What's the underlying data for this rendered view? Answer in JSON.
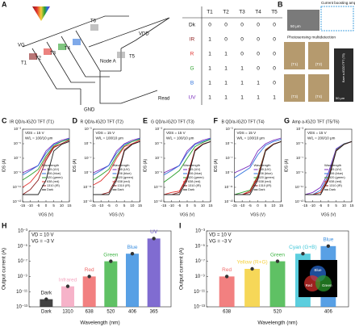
{
  "panel_a": {
    "letter": "A",
    "labels": [
      "VG",
      "VDD",
      "T1",
      "T2",
      "T3",
      "T4",
      "T5",
      "T6",
      "Node A",
      "Read",
      "GND"
    ]
  },
  "table": {
    "header": [
      "T1",
      "T2",
      "T3",
      "T4",
      "T5"
    ],
    "rows": [
      [
        "Dk",
        "0",
        "0",
        "0",
        "0",
        "0"
      ],
      [
        "IR",
        "1",
        "0",
        "0",
        "0",
        "0"
      ],
      [
        "R",
        "1",
        "1",
        "0",
        "0",
        "0"
      ],
      [
        "G",
        "1",
        "1",
        "1",
        "0",
        "0"
      ],
      [
        "B",
        "1",
        "1",
        "1",
        "1",
        "0"
      ],
      [
        "UV",
        "1",
        "1",
        "1",
        "1",
        "1"
      ]
    ],
    "row_colors": [
      "#111111",
      "#8b1a1a",
      "#e0302c",
      "#2ca02c",
      "#2a6fdb",
      "#7b2fbe"
    ]
  },
  "panel_b": {
    "letter": "B",
    "scale": "50 μm",
    "amp": "Current boosting amp",
    "multi": "Photosensing multidetection",
    "photos": [
      "(T1)",
      "(T2)",
      "(T3)",
      "(T4)"
    ],
    "bare": "Bare a-IGZO TFT (T5)",
    "scale2": "50 μm"
  },
  "chart_data": [
    {
      "type": "line",
      "panel": "C",
      "title": "IR QD/a-IGZO TFT (T1)",
      "annotations": [
        "VDS = 15 V",
        "W/L = 100/10 μm"
      ],
      "xlabel": "VGS (V)",
      "ylabel": "IDS (A)",
      "log_y": true,
      "legend_title": "Wavelength",
      "x": [
        -15,
        -10,
        -5,
        0,
        5,
        10,
        15
      ],
      "xlim": [
        -15,
        15
      ],
      "xticks": [
        -15,
        -10,
        -5,
        0,
        5,
        10,
        15
      ],
      "ylim": [
        1e-13,
        0.001
      ],
      "yticks": [
        {
          "value": 0.001,
          "label": "10⁻³"
        },
        {
          "value": 1e-05,
          "label": "10⁻⁵"
        },
        {
          "value": 1e-07,
          "label": "10⁻⁷"
        },
        {
          "value": 1e-09,
          "label": "10⁻⁹"
        },
        {
          "value": 1e-11,
          "label": "10⁻¹¹"
        },
        {
          "value": 1e-13,
          "label": "10⁻¹³"
        }
      ],
      "series": [
        {
          "name": "365 (UV)",
          "color": "#7b2fbe",
          "values": [
            1e-09,
            3e-09,
            1e-08,
            1e-06,
            1e-05,
            3e-05,
            6e-05
          ]
        },
        {
          "name": "406 (blue)",
          "color": "#2a6fdb",
          "values": [
            5e-10,
            2e-09,
            1e-08,
            5e-07,
            8e-06,
            2e-05,
            5e-05
          ]
        },
        {
          "name": "520 (green)",
          "color": "#2ca02c",
          "values": [
            1e-10,
            5e-10,
            3e-09,
            2e-07,
            5e-06,
            2e-05,
            4e-05
          ]
        },
        {
          "name": "638 (red)",
          "color": "#e0302c",
          "values": [
            1e-11,
            5e-11,
            1e-09,
            1e-07,
            4e-06,
            1e-05,
            3e-05
          ]
        },
        {
          "name": "1310 (IR)",
          "color": "#8b1a1a",
          "values": [
            1e-12,
            5e-12,
            1e-10,
            5e-08,
            3e-06,
            1e-05,
            3e-05
          ]
        },
        {
          "name": "Dark",
          "color": "#222222",
          "values": [
            1e-12,
            1e-12,
            1e-12,
            1e-10,
            1e-06,
            8e-06,
            2e-05
          ]
        }
      ]
    },
    {
      "type": "line",
      "panel": "D",
      "title": "R QD/a-IGZO TFT (T2)",
      "annotations": [
        "VDS = 15 V",
        "W/L = 100/10 μm"
      ],
      "xlabel": "VGS (V)",
      "ylabel": "IDS (A)",
      "log_y": true,
      "legend_title": "Wavelength",
      "x": [
        -15,
        -10,
        -5,
        0,
        5,
        10,
        15
      ],
      "xlim": [
        -15,
        15
      ],
      "xticks": [
        -15,
        -10,
        -5,
        0,
        5,
        10,
        15
      ],
      "ylim": [
        1e-13,
        0.001
      ],
      "yticks": [
        {
          "value": 0.001,
          "label": "10⁻³"
        },
        {
          "value": 1e-05,
          "label": "10⁻⁵"
        },
        {
          "value": 1e-07,
          "label": "10⁻⁷"
        },
        {
          "value": 1e-09,
          "label": "10⁻⁹"
        },
        {
          "value": 1e-11,
          "label": "10⁻¹¹"
        },
        {
          "value": 1e-13,
          "label": "10⁻¹³"
        }
      ],
      "series": [
        {
          "name": "365 (UV)",
          "color": "#7b2fbe",
          "values": [
            1e-09,
            3e-09,
            1e-08,
            1e-06,
            1e-05,
            3e-05,
            6e-05
          ]
        },
        {
          "name": "406 (blue)",
          "color": "#2a6fdb",
          "values": [
            5e-10,
            2e-09,
            1e-08,
            5e-07,
            8e-06,
            2e-05,
            5e-05
          ]
        },
        {
          "name": "520 (green)",
          "color": "#2ca02c",
          "values": [
            1e-10,
            5e-10,
            3e-09,
            2e-07,
            5e-06,
            2e-05,
            4e-05
          ]
        },
        {
          "name": "638 (red)",
          "color": "#e0302c",
          "values": [
            2e-11,
            8e-11,
            1e-09,
            1e-07,
            4e-06,
            1e-05,
            3e-05
          ]
        },
        {
          "name": "1310 (IR)",
          "color": "#8b1a1a",
          "values": [
            1e-12,
            1e-12,
            2e-12,
            2e-10,
            1.5e-06,
            9e-06,
            2e-05
          ]
        },
        {
          "name": "Dark",
          "color": "#222222",
          "values": [
            1e-12,
            1e-12,
            1e-12,
            1e-10,
            1e-06,
            8e-06,
            2e-05
          ]
        }
      ]
    },
    {
      "type": "line",
      "panel": "E",
      "title": "G QD/a-IGZO TFT (T3)",
      "annotations": [
        "VDS = 15 V",
        "W/L = 100/10 μm"
      ],
      "xlabel": "VGS (V)",
      "ylabel": "IDS (A)",
      "log_y": true,
      "legend_title": "Wavelength",
      "x": [
        -15,
        -10,
        -5,
        0,
        5,
        10,
        15
      ],
      "xlim": [
        -15,
        15
      ],
      "xticks": [
        -15,
        -10,
        -5,
        0,
        5,
        10,
        15
      ],
      "ylim": [
        1e-13,
        0.001
      ],
      "yticks": [
        {
          "value": 0.001,
          "label": "10⁻³"
        },
        {
          "value": 1e-05,
          "label": "10⁻⁵"
        },
        {
          "value": 1e-07,
          "label": "10⁻⁷"
        },
        {
          "value": 1e-09,
          "label": "10⁻⁹"
        },
        {
          "value": 1e-11,
          "label": "10⁻¹¹"
        },
        {
          "value": 1e-13,
          "label": "10⁻¹³"
        }
      ],
      "series": [
        {
          "name": "365 (UV)",
          "color": "#7b2fbe",
          "values": [
            1e-09,
            3e-09,
            1e-08,
            1e-06,
            1e-05,
            3e-05,
            6e-05
          ]
        },
        {
          "name": "406 (blue)",
          "color": "#2a6fdb",
          "values": [
            5e-10,
            2e-09,
            1e-08,
            5e-07,
            8e-06,
            2e-05,
            5e-05
          ]
        },
        {
          "name": "520 (green)",
          "color": "#2ca02c",
          "values": [
            5e-11,
            3e-10,
            2e-09,
            1e-07,
            4e-06,
            1.5e-05,
            4e-05
          ]
        },
        {
          "name": "638 (red)",
          "color": "#e0302c",
          "values": [
            1e-12,
            2e-12,
            3e-12,
            3e-10,
            1.5e-06,
            9e-06,
            2e-05
          ]
        },
        {
          "name": "1310 (IR)",
          "color": "#8b1a1a",
          "values": [
            1e-12,
            1e-12,
            2e-12,
            2e-10,
            1.2e-06,
            8e-06,
            2e-05
          ]
        },
        {
          "name": "Dark",
          "color": "#222222",
          "values": [
            1e-12,
            1e-12,
            1e-12,
            1e-10,
            1e-06,
            8e-06,
            2e-05
          ]
        }
      ]
    },
    {
      "type": "line",
      "panel": "F",
      "title": "B QD/a-IGZO TFT (T4)",
      "annotations": [
        "VDS = 15 V",
        "W/L = 100/10 μm"
      ],
      "xlabel": "VGS (V)",
      "ylabel": "IDS (A)",
      "log_y": true,
      "legend_title": "Wavelength",
      "x": [
        -15,
        -10,
        -5,
        0,
        5,
        10,
        15
      ],
      "xlim": [
        -15,
        15
      ],
      "xticks": [
        -15,
        -10,
        -5,
        0,
        5,
        10,
        15
      ],
      "ylim": [
        1e-13,
        0.001
      ],
      "yticks": [
        {
          "value": 0.001,
          "label": "10⁻³"
        },
        {
          "value": 1e-05,
          "label": "10⁻⁵"
        },
        {
          "value": 1e-07,
          "label": "10⁻⁷"
        },
        {
          "value": 1e-09,
          "label": "10⁻⁹"
        },
        {
          "value": 1e-11,
          "label": "10⁻¹¹"
        },
        {
          "value": 1e-13,
          "label": "10⁻¹³"
        }
      ],
      "series": [
        {
          "name": "365 (UV)",
          "color": "#7b2fbe",
          "values": [
            1e-09,
            3e-09,
            1e-08,
            1e-06,
            1e-05,
            3e-05,
            6e-05
          ]
        },
        {
          "name": "406 (blue)",
          "color": "#2a6fdb",
          "values": [
            2e-10,
            1e-09,
            5e-09,
            3e-07,
            6e-06,
            2e-05,
            4e-05
          ]
        },
        {
          "name": "520 (green)",
          "color": "#2ca02c",
          "values": [
            1e-12,
            2e-12,
            4e-12,
            4e-10,
            1.6e-06,
            9e-06,
            2e-05
          ]
        },
        {
          "name": "638 (red)",
          "color": "#e0302c",
          "values": [
            1e-12,
            1e-12,
            3e-12,
            3e-10,
            1.4e-06,
            9e-06,
            2e-05
          ]
        },
        {
          "name": "1310 (IR)",
          "color": "#8b1a1a",
          "values": [
            1e-12,
            1e-12,
            2e-12,
            2e-10,
            1.2e-06,
            8e-06,
            2e-05
          ]
        },
        {
          "name": "Dark",
          "color": "#222222",
          "values": [
            1e-12,
            1e-12,
            1e-12,
            1e-10,
            1e-06,
            8e-06,
            2e-05
          ]
        }
      ]
    },
    {
      "type": "line",
      "panel": "G",
      "title": "Amp a-IGZO TFT (T5/T6)",
      "annotations": [
        "VDS = 15 V",
        "W/L = 200/10 μm"
      ],
      "xlabel": "VGS (V)",
      "ylabel": "IDS (A)",
      "log_y": true,
      "legend_title": "Wavelength",
      "x": [
        -15,
        -10,
        -5,
        0,
        5,
        10,
        15
      ],
      "xlim": [
        -15,
        15
      ],
      "xticks": [
        -15,
        -10,
        -5,
        0,
        5,
        10,
        15
      ],
      "ylim": [
        1e-13,
        0.001
      ],
      "yticks": [
        {
          "value": 0.001,
          "label": "10⁻³"
        },
        {
          "value": 1e-05,
          "label": "10⁻⁵"
        },
        {
          "value": 1e-07,
          "label": "10⁻⁷"
        },
        {
          "value": 1e-09,
          "label": "10⁻⁹"
        },
        {
          "value": 1e-11,
          "label": "10⁻¹¹"
        },
        {
          "value": 1e-13,
          "label": "10⁻¹³"
        }
      ],
      "series": [
        {
          "name": "365 (UV)",
          "color": "#7b2fbe",
          "values": [
            1e-12,
            2e-12,
            1e-11,
            1e-09,
            2e-06,
            1e-05,
            2e-05
          ]
        },
        {
          "name": "406 (blue)",
          "color": "#2a6fdb",
          "values": [
            1e-12,
            1e-12,
            4e-12,
            4e-10,
            1.6e-06,
            9e-06,
            2e-05
          ]
        },
        {
          "name": "520 (green)",
          "color": "#2ca02c",
          "values": [
            1e-12,
            1e-12,
            2e-12,
            2e-10,
            1.3e-06,
            9e-06,
            2e-05
          ]
        },
        {
          "name": "638 (red)",
          "color": "#e0302c",
          "values": [
            1e-12,
            1e-12,
            2e-12,
            2e-10,
            1.2e-06,
            8e-06,
            2e-05
          ]
        },
        {
          "name": "1310 (IR)",
          "color": "#8b1a1a",
          "values": [
            1e-12,
            1e-12,
            1e-12,
            1.5e-10,
            1.1e-06,
            8e-06,
            2e-05
          ]
        },
        {
          "name": "Dark",
          "color": "#222222",
          "values": [
            1e-12,
            1e-12,
            1e-12,
            1e-10,
            1e-06,
            8e-06,
            2e-05
          ]
        }
      ]
    },
    {
      "type": "bar",
      "panel": "H",
      "annotations": [
        "VD = 10 V",
        "VG = −3 V"
      ],
      "xlabel": "Wavelength (nm)",
      "ylabel": "Output current (A)",
      "log_y": true,
      "categories": [
        "Dark",
        "1310",
        "638",
        "520",
        "406",
        "365"
      ],
      "bar_labels": [
        "Dark",
        "Infrared",
        "Red",
        "Green",
        "Blue",
        "UV"
      ],
      "colors": [
        "#222222",
        "#f4a6c0",
        "#f06a6a",
        "#43b649",
        "#3b8fe0",
        "#6a52c9"
      ],
      "values": [
        1e-12,
        5e-11,
        1e-09,
        1e-07,
        1e-06,
        0.0001
      ],
      "ylim": [
        1e-13,
        0.001
      ],
      "yticks": [
        {
          "value": 0.001,
          "label": "10⁻³"
        },
        {
          "value": 1e-05,
          "label": "10⁻⁵"
        },
        {
          "value": 1e-07,
          "label": "10⁻⁷"
        },
        {
          "value": 1e-09,
          "label": "10⁻⁹"
        },
        {
          "value": 1e-11,
          "label": "10⁻¹¹"
        },
        {
          "value": 1e-13,
          "label": "10⁻¹³"
        }
      ]
    },
    {
      "type": "bar",
      "panel": "I",
      "annotations": [
        "VD = 10 V",
        "VG = −3 V"
      ],
      "xlabel": "Wavelength (nm)",
      "ylabel": "Output current (A)",
      "log_y": true,
      "categories": [
        "638",
        null,
        "520",
        null,
        "406"
      ],
      "bar_labels": [
        "Red",
        "Yellow (R+G)",
        "Green",
        "Cyan (G+B)",
        "Blue"
      ],
      "colors": [
        "#f06a6a",
        "#f5d03b",
        "#43b649",
        "#3fc6d8",
        "#3b8fe0"
      ],
      "values": [
        1e-09,
        1e-08,
        1e-07,
        1e-06,
        1e-05
      ],
      "inset_labels": [
        "Blue",
        "Red",
        "Green"
      ],
      "ylim": [
        1e-13,
        0.001
      ],
      "yticks": [
        {
          "value": 0.001,
          "label": "10⁻³"
        },
        {
          "value": 1e-05,
          "label": "10⁻⁵"
        },
        {
          "value": 1e-07,
          "label": "10⁻⁷"
        },
        {
          "value": 1e-09,
          "label": "10⁻⁹"
        },
        {
          "value": 1e-11,
          "label": "10⁻¹¹"
        },
        {
          "value": 1e-13,
          "label": "10⁻¹³"
        }
      ]
    }
  ]
}
